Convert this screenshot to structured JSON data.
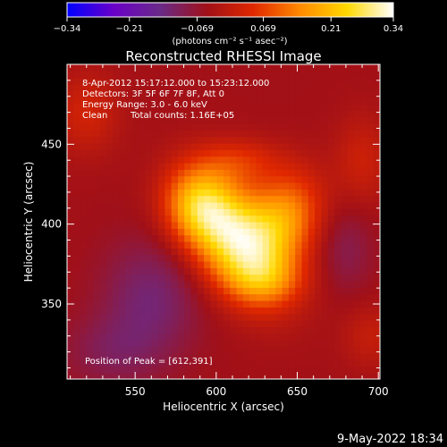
{
  "chart_data": {
    "type": "heatmap",
    "title": "Reconstructed RHESSI Image",
    "xlabel": "Heliocentric X (arcsec)",
    "ylabel": "Heliocentric Y (arcsec)",
    "xlim": [
      508,
      701
    ],
    "ylim": [
      303,
      500
    ],
    "x_ticks": [
      550,
      600,
      650,
      700
    ],
    "y_ticks": [
      350,
      400,
      450
    ],
    "colorbar": {
      "label": "(photons cm⁻² s⁻¹ asec⁻²)",
      "range": [
        -0.34,
        0.34
      ],
      "tick_values": [
        -0.34,
        -0.21,
        -0.069,
        0.069,
        0.21,
        0.34
      ],
      "tick_labels": [
        "−0.34",
        "−0.21",
        "−0.069",
        "0.069",
        "0.21",
        "0.34"
      ],
      "colors": [
        "#0000ff",
        "#6a00c8",
        "#6a2a88",
        "#a01018",
        "#e02800",
        "#ff8a00",
        "#ffd800",
        "#ffffff"
      ]
    },
    "info_lines": [
      "8-Apr-2012 15:17:12.000 to 15:23:12.000",
      "Detectors: 3F 5F 6F 7F 8F, Att 0",
      "Energy Range: 3.0 - 6.0 keV"
    ],
    "clean_label": "Clean",
    "total_counts": "Total counts: 1.16E+05",
    "peak_text": "Position of Peak = [612,391]",
    "peak": [
      612,
      391
    ],
    "sources": [
      {
        "x": 612,
        "y": 391,
        "sx": 18,
        "sy": 28,
        "rot": 35,
        "amp": 0.34
      },
      {
        "x": 588,
        "y": 413,
        "sx": 14,
        "sy": 16,
        "rot": 0,
        "amp": 0.16
      },
      {
        "x": 643,
        "y": 405,
        "sx": 15,
        "sy": 20,
        "rot": -20,
        "amp": 0.18
      },
      {
        "x": 615,
        "y": 440,
        "sx": 18,
        "sy": 10,
        "rot": 0,
        "amp": 0.08
      },
      {
        "x": 630,
        "y": 365,
        "sx": 16,
        "sy": 11,
        "rot": 0,
        "amp": 0.09
      },
      {
        "x": 520,
        "y": 470,
        "sx": 14,
        "sy": 18,
        "rot": 0,
        "amp": 0.07
      },
      {
        "x": 690,
        "y": 440,
        "sx": 12,
        "sy": 20,
        "rot": 0,
        "amp": 0.06
      },
      {
        "x": 695,
        "y": 330,
        "sx": 12,
        "sy": 14,
        "rot": 0,
        "amp": 0.05
      },
      {
        "x": 560,
        "y": 355,
        "sx": 22,
        "sy": 26,
        "rot": 0,
        "amp": -0.08
      },
      {
        "x": 535,
        "y": 320,
        "sx": 22,
        "sy": 16,
        "rot": 0,
        "amp": -0.05
      },
      {
        "x": 680,
        "y": 385,
        "sx": 12,
        "sy": 20,
        "rot": 0,
        "amp": -0.05
      }
    ],
    "background": -0.045
  },
  "timestamp": "9-May-2022 18:34"
}
